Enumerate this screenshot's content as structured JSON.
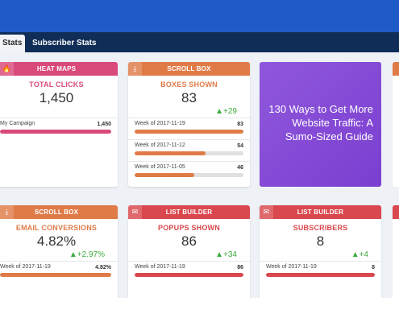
{
  "tabs": {
    "active": "Stats",
    "other": "Subscriber Stats"
  },
  "colors": {
    "pink": "#d94a7b",
    "orange": "#e07b48",
    "red": "#d9484e",
    "purple": "#8a4fdc",
    "blue": "#1f5bc6",
    "navy": "#0f2d57"
  },
  "cards": {
    "heatmaps": {
      "header": "HEAT MAPS",
      "icon": "flame-icon",
      "metric": "TOTAL CLICKS",
      "value": "1,450",
      "rows": [
        {
          "label": "My Campaign",
          "value": "1,450",
          "fill": 1.0
        }
      ]
    },
    "scrollbox1": {
      "header": "SCROLL BOX",
      "icon": "arrow-down-icon",
      "metric": "BOXES SHOWN",
      "value": "83",
      "delta": "▲+29",
      "rows": [
        {
          "label": "Week of 2017-11-19",
          "value": "83",
          "fill": 1.0
        },
        {
          "label": "Week of 2017-11-12",
          "value": "54",
          "fill": 0.65
        },
        {
          "label": "Week of 2017-11-05",
          "value": "46",
          "fill": 0.55
        }
      ]
    },
    "scrollbox2": {
      "header": "SCROLL BOX",
      "icon": "arrow-down-icon",
      "metric": "EMAIL CONVERSIONS",
      "value": "4.82%",
      "delta": "▲+2.97%",
      "rows": [
        {
          "label": "Week of 2017-11-19",
          "value": "4.82%",
          "fill": 1.0
        }
      ]
    },
    "listbuilder1": {
      "header": "LIST BUILDER",
      "icon": "envelope-icon",
      "metric": "POPUPS SHOWN",
      "value": "86",
      "delta": "▲+34",
      "rows": [
        {
          "label": "Week of 2017-11-19",
          "value": "86",
          "fill": 1.0
        }
      ]
    },
    "listbuilder2": {
      "header": "LIST BUILDER",
      "icon": "envelope-icon",
      "metric": "SUBSCRIBERS",
      "value": "8",
      "delta": "▲+4",
      "rows": [
        {
          "label": "Week of 2017-11-19",
          "value": "8",
          "fill": 1.0
        }
      ]
    }
  },
  "promo": {
    "text": "130 Ways to Get More Website Traffic: A Sumo-Sized Guide"
  }
}
